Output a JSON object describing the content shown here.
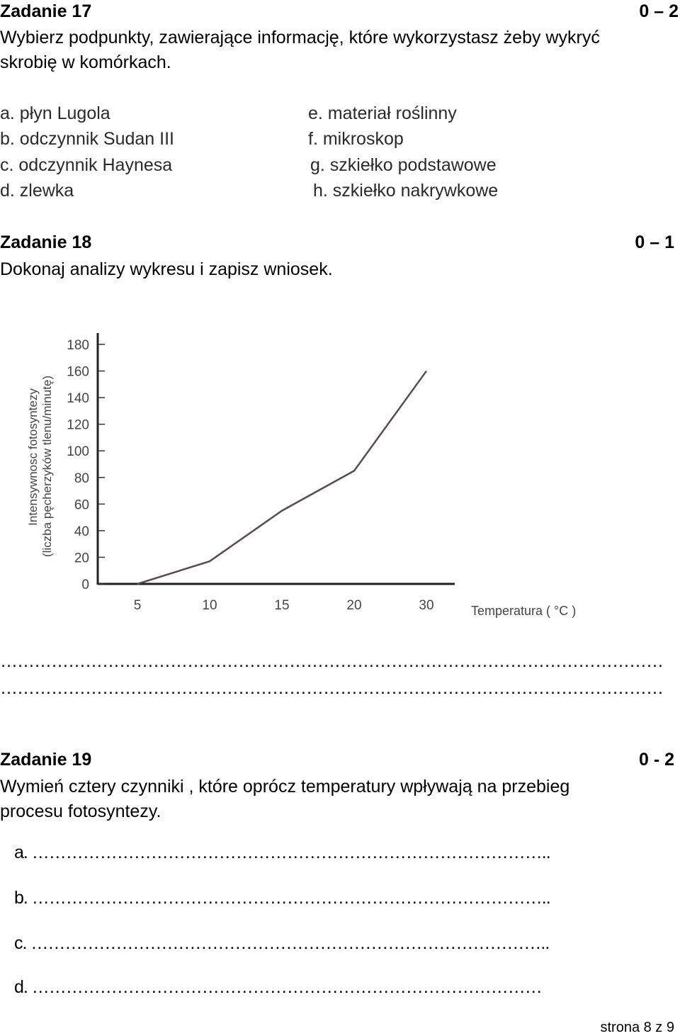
{
  "task17": {
    "title": "Zadanie   17",
    "score": "0 – 2",
    "question_line1": "Wybierz podpunkty, zawierające informację, które wykorzystasz żeby wykryć",
    "question_line2": "skrobię w komórkach.",
    "options_left": [
      "a. płyn Lugola",
      "b. odczynnik Sudan III",
      "c. odczynnik Haynesa",
      "d. zlewka"
    ],
    "options_right": [
      "e. materiał roślinny",
      "f.  mikroskop",
      "g. szkiełko podstawowe",
      "h. szkiełko nakrywkowe"
    ]
  },
  "task18": {
    "title": "Zadanie   18",
    "score": "0 – 1",
    "question": "Dokonaj analizy wykresu i zapisz wniosek.",
    "answer_line1": "………………………………………………………………………………………………………",
    "answer_line2": "………………………………………………………………………………………………………"
  },
  "chart_data": {
    "type": "line",
    "ylabel_line1": "Intensywnosc fotosyntezy",
    "ylabel_line2": "(liczba pęcherzyków tlenu/minutę)",
    "xlabel": "Temperatura ( °C )",
    "categories": [
      "5",
      "10",
      "15",
      "20",
      "30"
    ],
    "x": [
      5,
      10,
      15,
      20,
      30
    ],
    "values": [
      0,
      17,
      55,
      85,
      160
    ],
    "yticks": [
      "0",
      "20",
      "40",
      "60",
      "80",
      "100",
      "120",
      "140",
      "160",
      "180"
    ],
    "ylim": [
      0,
      180
    ],
    "grid": false,
    "line_color": "#5a4a55"
  },
  "task19": {
    "title": "Zadanie 19",
    "score": "0 - 2",
    "question_line1": "Wymień cztery czynniki , które oprócz temperatury wpływają  na przebieg",
    "question_line2": "procesu fotosyntezy.",
    "answers": [
      "a. ………………………………………………………………………………..",
      "b. ………………………………………………………………………………..",
      "c. ………………………………………………………………………………..",
      "d. ………………………………………………………………………………"
    ]
  },
  "footer": {
    "page": "strona 8 z 9"
  }
}
